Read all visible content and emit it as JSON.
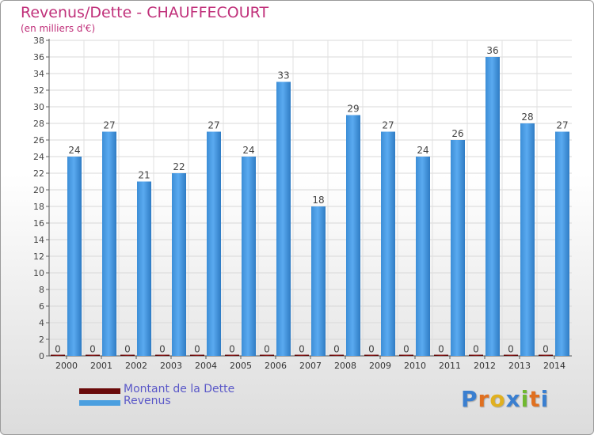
{
  "header": {
    "title": "Revenus/Dette - CHAUFFECOURT",
    "subtitle": "(en milliers d'€)"
  },
  "chart_data": {
    "type": "bar",
    "categories": [
      "2000",
      "2001",
      "2002",
      "2003",
      "2004",
      "2005",
      "2006",
      "2007",
      "2008",
      "2009",
      "2010",
      "2011",
      "2012",
      "2013",
      "2014"
    ],
    "series": [
      {
        "name": "Montant de la Dette",
        "color": "#6a0a0a",
        "values": [
          0,
          0,
          0,
          0,
          0,
          0,
          0,
          0,
          0,
          0,
          0,
          0,
          0,
          0,
          0
        ]
      },
      {
        "name": "Revenus",
        "color": "#4a9fe0",
        "values": [
          24,
          27,
          21,
          22,
          27,
          24,
          33,
          18,
          29,
          27,
          24,
          26,
          36,
          28,
          27
        ]
      }
    ],
    "ylim": [
      0,
      38
    ],
    "yticks": [
      0,
      2,
      4,
      6,
      8,
      10,
      12,
      14,
      16,
      18,
      20,
      22,
      24,
      26,
      28,
      30,
      32,
      34,
      36,
      38
    ],
    "grid": true,
    "legend_position": "bottom-left"
  },
  "legend": {
    "items": [
      {
        "label": "Montant de la Dette",
        "color": "#6a0a0a"
      },
      {
        "label": "Revenus",
        "color": "#4a9fe0"
      }
    ]
  },
  "brand": {
    "letters": [
      "P",
      "r",
      "o",
      "x",
      "i",
      "t",
      "i"
    ],
    "colors": [
      "#3a7fd0",
      "#e07020",
      "#e0b020",
      "#3a7fd0",
      "#70b830",
      "#e07020",
      "#3a7fd0"
    ]
  }
}
